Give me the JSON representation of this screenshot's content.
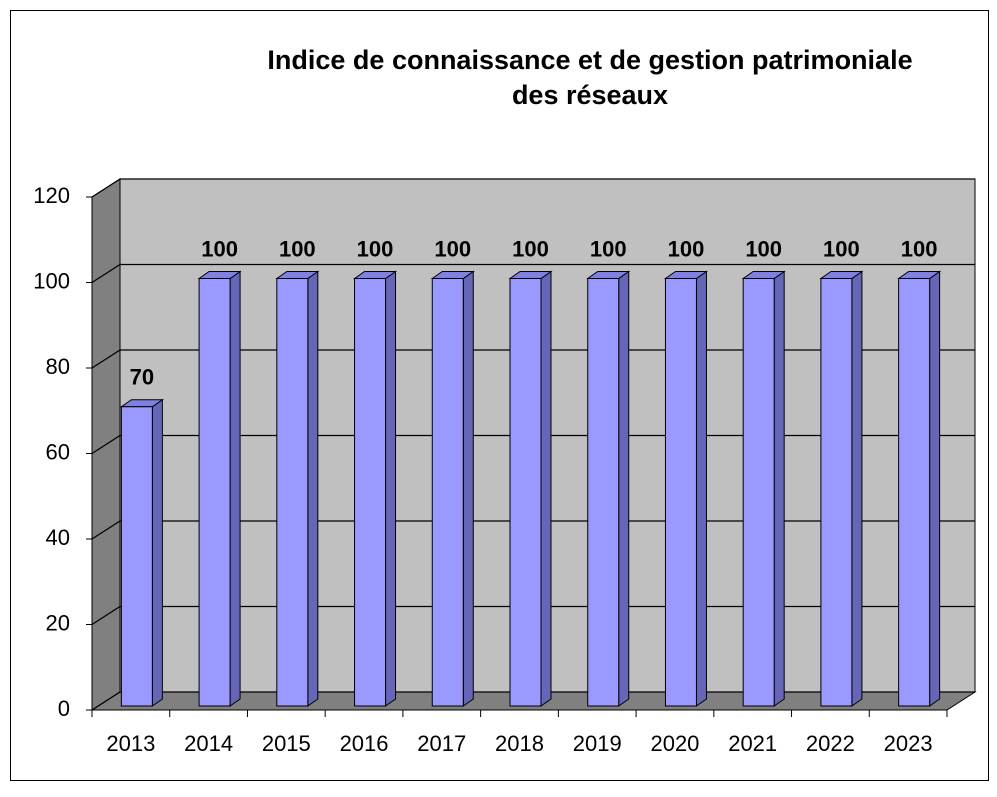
{
  "chart_data": {
    "type": "bar3d",
    "title": "Indice de connaissance et de gestion patrimoniale",
    "subtitle": "des réseaux",
    "categories": [
      "2013",
      "2014",
      "2015",
      "2016",
      "2017",
      "2018",
      "2019",
      "2020",
      "2021",
      "2022",
      "2023"
    ],
    "values": [
      70,
      100,
      100,
      100,
      100,
      100,
      100,
      100,
      100,
      100,
      100
    ],
    "color": "#9999ff",
    "ylim": [
      0,
      120
    ],
    "yticks": [
      0,
      20,
      40,
      60,
      80,
      100,
      120
    ],
    "grid": true
  }
}
